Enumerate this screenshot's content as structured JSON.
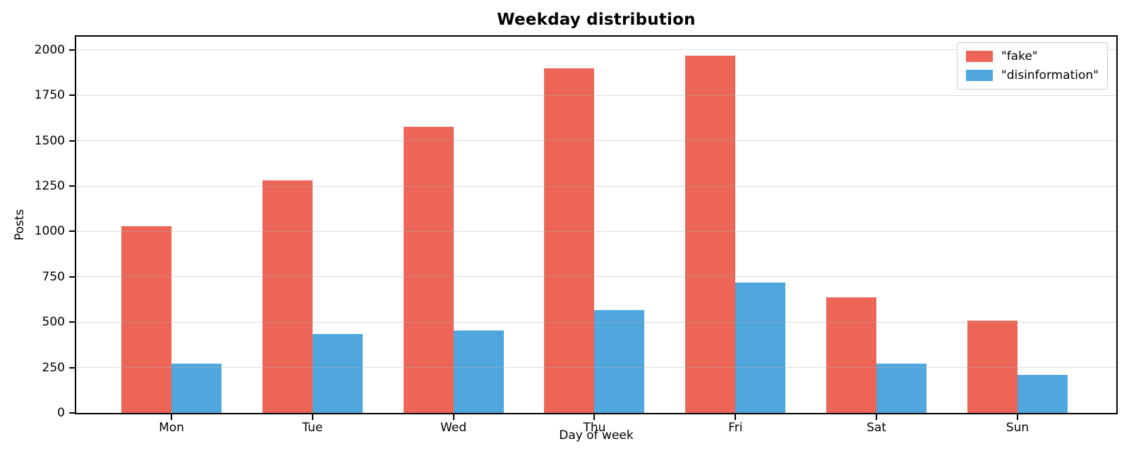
{
  "figure": {
    "background": "#ffffff",
    "spine_color": "#000000",
    "grid_color": "#b0b0b0"
  },
  "chart_data": {
    "type": "bar",
    "title": "Weekday distribution",
    "xlabel": "Day of week",
    "ylabel": "Posts",
    "categories": [
      "Mon",
      "Tue",
      "Wed",
      "Thu",
      "Fri",
      "Sat",
      "Sun"
    ],
    "series": [
      {
        "name": "\"fake\"",
        "color": "#ec6557",
        "values": [
          1030,
          1280,
          1575,
          1900,
          1970,
          635,
          510
        ]
      },
      {
        "name": "\"disinformation\"",
        "color": "#4fa7dd",
        "values": [
          270,
          435,
          455,
          565,
          720,
          270,
          210
        ]
      }
    ],
    "ylim": [
      0,
      2070
    ],
    "yticks": [
      0,
      250,
      500,
      750,
      1000,
      1250,
      1500,
      1750,
      2000
    ],
    "grid": "horizontal",
    "legend_position": "upper right"
  }
}
